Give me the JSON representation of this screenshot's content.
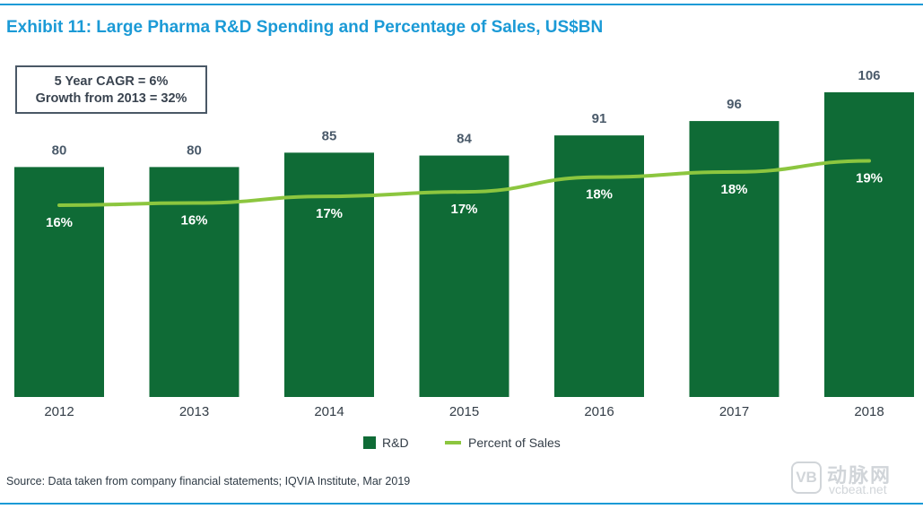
{
  "title": "Exhibit 11: Large Pharma R&D Spending and Percentage of Sales, US$BN",
  "annotation": {
    "line1": "5 Year CAGR = 6%",
    "line2": "Growth from 2013 = 32%"
  },
  "source": "Source: Data taken from company financial statements; IQVIA Institute, Mar 2019",
  "watermark": {
    "logo": "VB",
    "cn": "动脉网",
    "en": "vcbeat.net"
  },
  "colors": {
    "bar": "#0f6b36",
    "line": "#8cc63f",
    "title": "#1b9ad6",
    "value_label": "#4a5a6a"
  },
  "chart_data": {
    "type": "bar",
    "title": "Large Pharma R&D Spending and Percentage of Sales, US$BN",
    "categories": [
      "2012",
      "2013",
      "2014",
      "2015",
      "2016",
      "2017",
      "2018"
    ],
    "series": [
      {
        "name": "R&D",
        "type": "bar",
        "values": [
          80,
          80,
          85,
          84,
          91,
          96,
          106
        ]
      },
      {
        "name": "Percent of Sales",
        "type": "line",
        "values": [
          16,
          16,
          17,
          17,
          18,
          18,
          19
        ],
        "labels": [
          "16%",
          "16%",
          "17%",
          "17%",
          "18%",
          "18%",
          "19%"
        ]
      }
    ],
    "ylim": [
      0,
      106
    ],
    "xlabel": "",
    "ylabel": "",
    "legend": {
      "position": "bottom-center",
      "entries": [
        "R&D",
        "Percent of Sales"
      ]
    }
  }
}
